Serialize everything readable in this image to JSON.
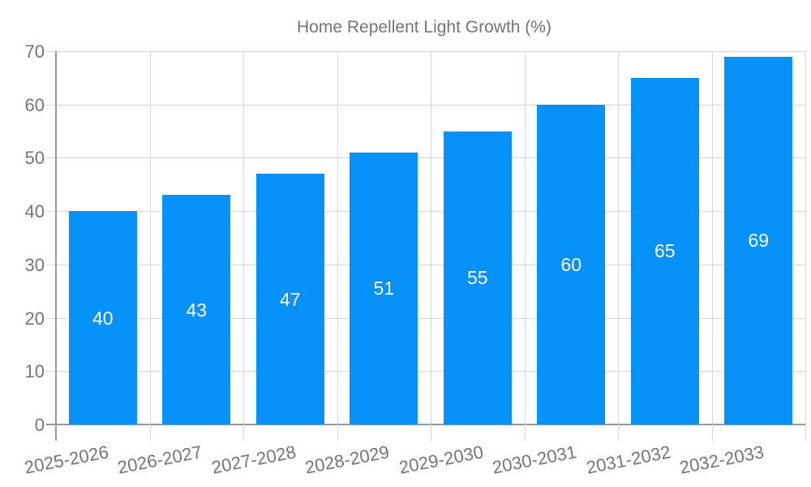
{
  "chart_data": {
    "type": "bar",
    "title": "Home Repellent Light Growth (%)",
    "categories": [
      "2025-2026",
      "2026-2027",
      "2027-2028",
      "2028-2029",
      "2029-2030",
      "2030-2031",
      "2031-2032",
      "2032-2033"
    ],
    "values": [
      40,
      43,
      47,
      51,
      55,
      60,
      65,
      69
    ],
    "xlabel": "",
    "ylabel": "",
    "ylim": [
      0,
      70
    ],
    "ytick_step": 10,
    "ytick_labels": [
      "0",
      "10",
      "20",
      "30",
      "40",
      "50",
      "60",
      "70"
    ],
    "legend_position": "top",
    "grid": true,
    "bar_value_labels_inside": true,
    "colors": {
      "bar": "#0591f7",
      "bar_label": "#ffffff",
      "axis_text": "#757575",
      "grid_line": "#d6d6d6",
      "axis_line": "#999999",
      "background": "#ffffff"
    }
  }
}
